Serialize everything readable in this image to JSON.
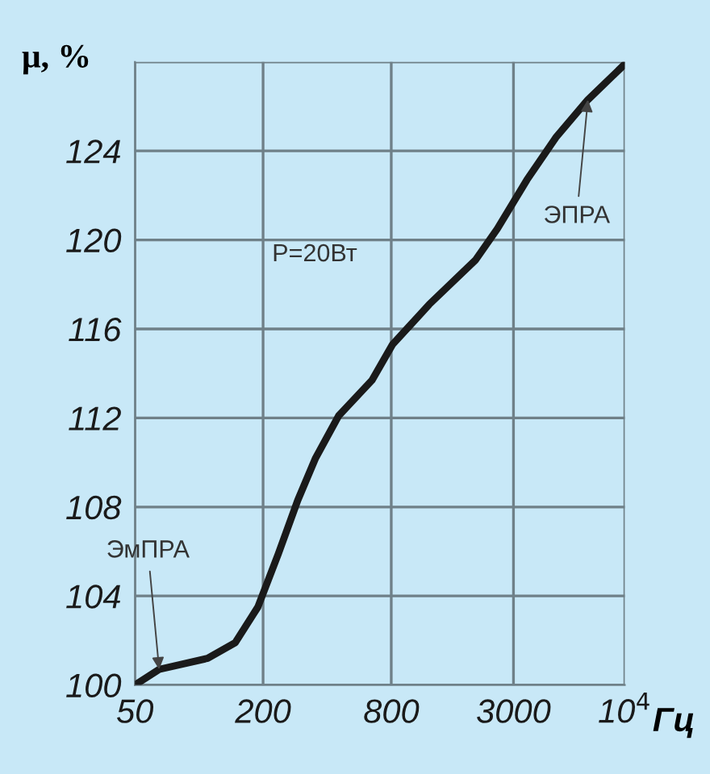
{
  "chart_data": {
    "type": "line",
    "ylabel": "μ, %",
    "xlabel": "Гц",
    "x": [
      50,
      65,
      110,
      148,
      189,
      236,
      291,
      353,
      453,
      650,
      811,
      1205,
      1990,
      2520,
      3470,
      4740,
      6710,
      10000
    ],
    "series": [
      {
        "color": "#1a1a1a",
        "values": [
          100,
          100.7,
          101.2,
          101.9,
          103.5,
          105.9,
          108.3,
          110.2,
          112.1,
          113.7,
          115.3,
          117.1,
          119.1,
          120.5,
          122.7,
          124.6,
          126.3,
          127.9
        ]
      }
    ],
    "log": "x",
    "xlim": [
      50,
      10000
    ],
    "xticks": [
      50,
      200,
      800,
      3000,
      {
        "value": 10000,
        "label": "10$^{4}$"
      }
    ],
    "ylim": [
      100,
      128
    ],
    "yticks": [
      100,
      104,
      108,
      112,
      116,
      120,
      124,
      {
        "value": 128,
        "label": null
      }
    ],
    "grid": true,
    "marker": "none",
    "line_style": "solid",
    "annotations": [
      "P=20Вт",
      {
        "text": "ЭмПРА",
        "x": 65,
        "y": 100.7
      },
      {
        "text": "ЭПРА",
        "x": 6710,
        "y": 126.3
      }
    ]
  }
}
